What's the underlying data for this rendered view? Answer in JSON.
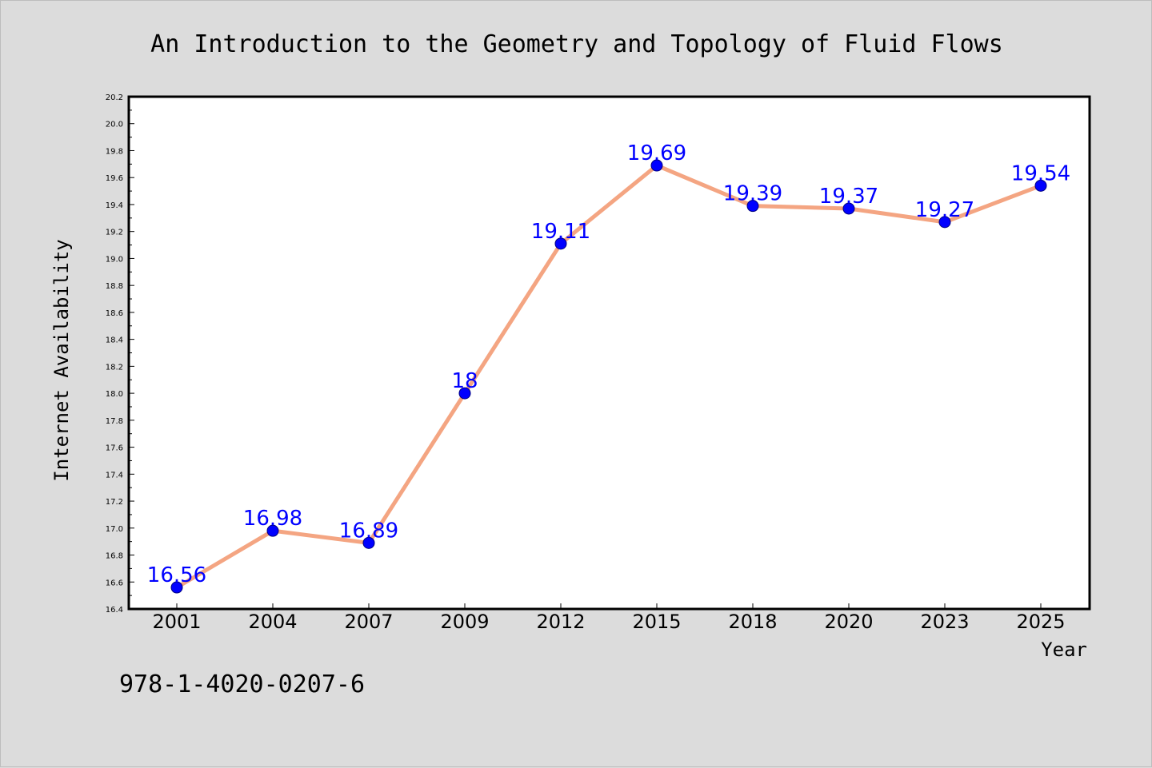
{
  "chart_data": {
    "type": "line",
    "title": "An Introduction to the Geometry and Topology of Fluid Flows",
    "xlabel": "Year",
    "ylabel": "Internet Availability",
    "categories": [
      "2001",
      "2004",
      "2007",
      "2009",
      "2012",
      "2015",
      "2018",
      "2020",
      "2023",
      "2025"
    ],
    "series": [
      {
        "values": [
          16.56,
          16.98,
          16.89,
          18.0,
          19.11,
          19.69,
          19.39,
          19.37,
          19.27,
          19.54
        ],
        "data_labels": [
          "16.56",
          "16.98",
          "16.89",
          "18",
          "19.11",
          "19.69",
          "19.39",
          "19.37",
          "19.27",
          "19.54"
        ],
        "line_color": "#f4a582",
        "marker_color": "#0000ff"
      }
    ],
    "ylim": [
      16.4,
      20.2
    ],
    "yticks": [
      "16.4",
      "16.6",
      "16.8",
      "17.0",
      "17.2",
      "17.4",
      "17.6",
      "17.8",
      "18.0",
      "18.2",
      "18.4",
      "18.6",
      "18.8",
      "19.0",
      "19.2",
      "19.4",
      "19.6",
      "19.8",
      "20.0",
      "20.2"
    ],
    "grid": false,
    "legend": "none"
  },
  "annotation": {
    "isbn": "978-1-4020-0207-6"
  },
  "colors": {
    "background": "#dcdcdc",
    "plot_background": "#ffffff",
    "line": "#f4a582",
    "marker": "#0000ff",
    "label": "#0000ff"
  }
}
